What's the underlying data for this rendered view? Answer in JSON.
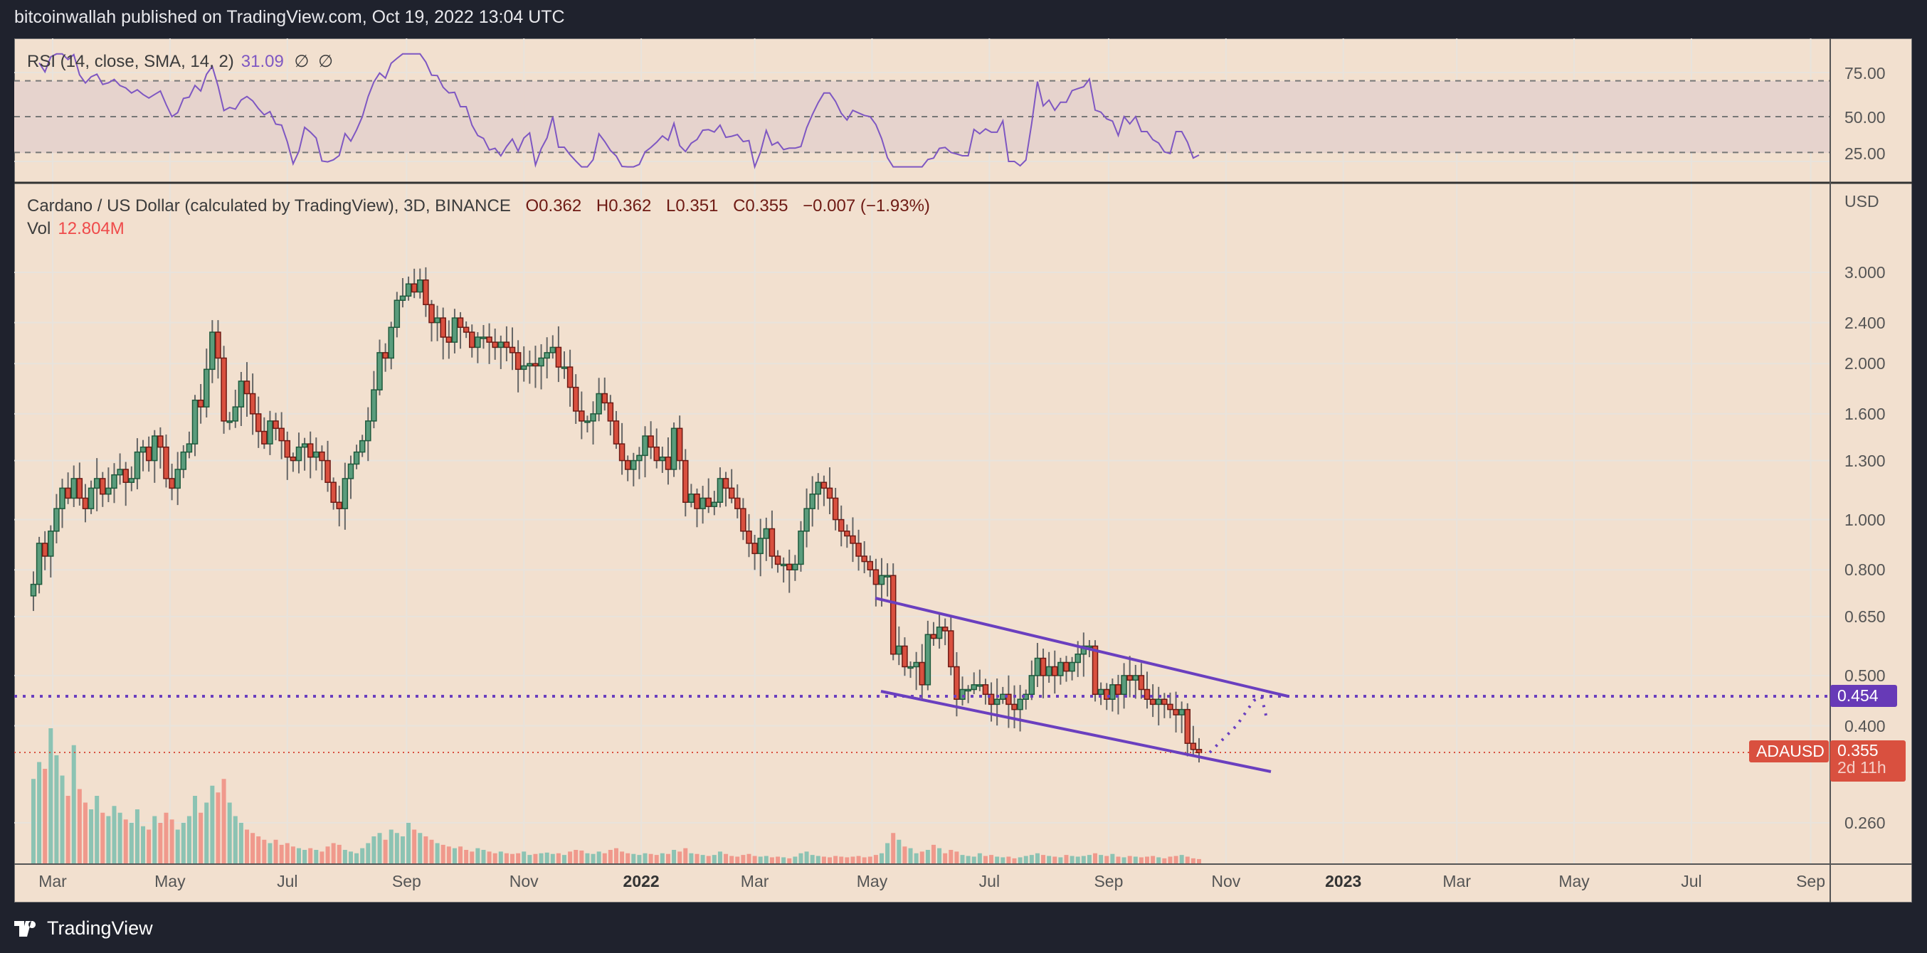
{
  "header": {
    "published": "bitcoinwallah published on TradingView.com, Oct 19, 2022 13:04 UTC"
  },
  "rsi": {
    "label": "RSI (14, close, SMA, 14, 2)",
    "value": "31.09",
    "extra1": "∅",
    "extra2": "∅",
    "axis": [
      "75.00",
      "50.00",
      "25.00"
    ],
    "levels": [
      70,
      50,
      30
    ]
  },
  "legend": {
    "symbol": "Cardano / US Dollar (calculated by TradingView), 3D, BINANCE",
    "open": "O0.362",
    "high": "H0.362",
    "low": "L0.351",
    "close": "C0.355",
    "change": "−0.007 (−1.93%)",
    "vol_label": "Vol",
    "vol_value": "12.804M"
  },
  "price_axis": {
    "currency": "USD",
    "labels": [
      "3.000",
      "2.400",
      "2.000",
      "1.600",
      "1.300",
      "1.000",
      "0.800",
      "0.650",
      "0.500",
      "0.400",
      "0.260"
    ]
  },
  "badges": {
    "level": "0.454",
    "symbol": "ADAUSD",
    "last": "0.355",
    "countdown": "2d 11h"
  },
  "time_axis": [
    {
      "label": "Mar",
      "date": "2021-03-01"
    },
    {
      "label": "May",
      "date": "2021-05-01"
    },
    {
      "label": "Jul",
      "date": "2021-07-01"
    },
    {
      "label": "Sep",
      "date": "2021-09-01"
    },
    {
      "label": "Nov",
      "date": "2021-11-01"
    },
    {
      "label": "2022",
      "date": "2022-01-01",
      "year": true
    },
    {
      "label": "Mar",
      "date": "2022-03-01"
    },
    {
      "label": "May",
      "date": "2022-05-01"
    },
    {
      "label": "Jul",
      "date": "2022-07-01"
    },
    {
      "label": "Sep",
      "date": "2022-09-01"
    },
    {
      "label": "Nov",
      "date": "2022-11-01"
    },
    {
      "label": "2023",
      "date": "2023-01-01",
      "year": true
    },
    {
      "label": "Mar",
      "date": "2023-03-01"
    },
    {
      "label": "May",
      "date": "2023-05-01"
    },
    {
      "label": "Jul",
      "date": "2023-07-01"
    },
    {
      "label": "Sep",
      "date": "2023-09-01"
    }
  ],
  "colors": {
    "up": "#5a9c7c",
    "up_border": "#1e5a3c",
    "down": "#d9503f",
    "down_border": "#6e1a14",
    "vol_up": "#8cc3b3",
    "vol_down": "#f0998c",
    "rsi": "#7e57c2",
    "drawing": "#6a3fbf",
    "last": "#d9503f"
  },
  "footer": {
    "brand": "TradingView"
  },
  "chart_data": {
    "type": "candlestick",
    "start_date": "2021-02-19",
    "interval_days": 3,
    "scale": "log",
    "closes": [
      0.75,
      0.9,
      0.85,
      0.95,
      1.05,
      1.15,
      1.1,
      1.2,
      1.1,
      1.05,
      1.15,
      1.2,
      1.12,
      1.15,
      1.22,
      1.25,
      1.18,
      1.2,
      1.35,
      1.38,
      1.3,
      1.45,
      1.38,
      1.2,
      1.15,
      1.25,
      1.35,
      1.4,
      1.7,
      1.65,
      1.95,
      2.3,
      2.05,
      1.55,
      1.55,
      1.65,
      1.85,
      1.75,
      1.6,
      1.48,
      1.4,
      1.55,
      1.5,
      1.42,
      1.32,
      1.3,
      1.38,
      1.4,
      1.32,
      1.35,
      1.3,
      1.18,
      1.08,
      1.05,
      1.2,
      1.28,
      1.35,
      1.42,
      1.55,
      1.78,
      2.1,
      2.05,
      2.35,
      2.65,
      2.7,
      2.85,
      2.75,
      2.9,
      2.6,
      2.4,
      2.45,
      2.25,
      2.2,
      2.45,
      2.35,
      2.3,
      2.15,
      2.25,
      2.25,
      2.2,
      2.15,
      2.2,
      2.15,
      2.1,
      1.95,
      1.98,
      2.0,
      1.98,
      2.05,
      2.1,
      2.15,
      1.97,
      1.97,
      1.8,
      1.62,
      1.55,
      1.55,
      1.6,
      1.75,
      1.68,
      1.55,
      1.4,
      1.3,
      1.25,
      1.3,
      1.33,
      1.45,
      1.38,
      1.3,
      1.32,
      1.25,
      1.5,
      1.3,
      1.08,
      1.12,
      1.05,
      1.1,
      1.06,
      1.08,
      1.2,
      1.15,
      1.1,
      1.05,
      0.95,
      0.9,
      0.86,
      0.92,
      0.96,
      0.85,
      0.82,
      0.82,
      0.8,
      0.82,
      0.95,
      1.05,
      1.12,
      1.18,
      1.15,
      1.1,
      1.0,
      0.95,
      0.93,
      0.9,
      0.85,
      0.83,
      0.8,
      0.75,
      0.78,
      0.78,
      0.55,
      0.57,
      0.52,
      0.52,
      0.53,
      0.48,
      0.6,
      0.59,
      0.62,
      0.61,
      0.52,
      0.45,
      0.47,
      0.47,
      0.48,
      0.48,
      0.46,
      0.44,
      0.45,
      0.46,
      0.44,
      0.43,
      0.45,
      0.46,
      0.5,
      0.54,
      0.5,
      0.52,
      0.5,
      0.53,
      0.51,
      0.53,
      0.55,
      0.57,
      0.57,
      0.46,
      0.47,
      0.45,
      0.48,
      0.46,
      0.5,
      0.49,
      0.5,
      0.47,
      0.45,
      0.44,
      0.45,
      0.44,
      0.43,
      0.42,
      0.43,
      0.37,
      0.36,
      0.355
    ],
    "volumes_m": [
      250,
      300,
      280,
      400,
      320,
      260,
      200,
      350,
      220,
      180,
      160,
      200,
      150,
      140,
      170,
      150,
      130,
      120,
      160,
      110,
      100,
      140,
      120,
      150,
      130,
      100,
      120,
      140,
      200,
      150,
      180,
      230,
      210,
      250,
      180,
      140,
      120,
      100,
      90,
      80,
      70,
      60,
      70,
      55,
      60,
      50,
      45,
      40,
      45,
      40,
      35,
      50,
      60,
      55,
      40,
      35,
      30,
      45,
      60,
      80,
      90,
      70,
      100,
      90,
      80,
      120,
      100,
      90,
      80,
      70,
      60,
      55,
      50,
      45,
      50,
      40,
      35,
      45,
      40,
      35,
      30,
      35,
      30,
      28,
      30,
      35,
      25,
      28,
      30,
      32,
      28,
      30,
      25,
      35,
      40,
      38,
      30,
      28,
      35,
      30,
      40,
      45,
      35,
      30,
      28,
      25,
      30,
      28,
      25,
      30,
      28,
      40,
      35,
      45,
      30,
      28,
      25,
      22,
      25,
      35,
      28,
      22,
      20,
      25,
      28,
      22,
      20,
      22,
      18,
      20,
      18,
      15,
      20,
      30,
      35,
      25,
      22,
      20,
      18,
      22,
      20,
      18,
      20,
      22,
      18,
      20,
      25,
      30,
      60,
      90,
      70,
      50,
      45,
      30,
      35,
      40,
      55,
      45,
      30,
      40,
      35,
      25,
      22,
      20,
      30,
      22,
      25,
      20,
      18,
      20,
      15,
      18,
      22,
      25,
      30,
      25,
      22,
      20,
      18,
      25,
      22,
      20,
      22,
      25,
      30,
      25,
      22,
      28,
      20,
      18,
      22,
      20,
      18,
      20,
      22,
      18,
      15,
      20,
      22,
      25,
      20,
      15,
      12.8
    ],
    "horizontal_level": 0.454,
    "last_price": 0.355,
    "ylim": [
      0.22,
      3.3
    ]
  }
}
